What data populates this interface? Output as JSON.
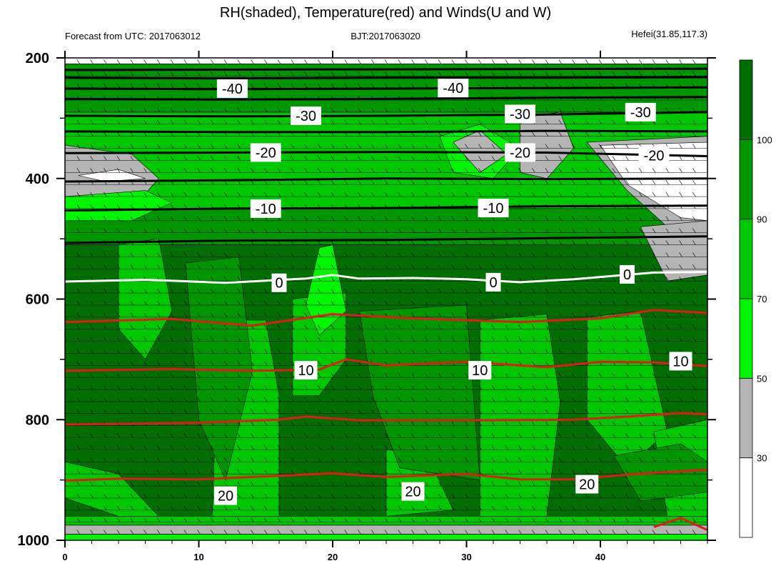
{
  "colors": {
    "rh_fills": [
      "#ffffff",
      "#b4b4b4",
      "#00f600",
      "#00c800",
      "#009600",
      "#006e00"
    ],
    "temp_line": "#e41a1a",
    "zero_line": "#ffffff",
    "cold_line": "#000000"
  },
  "chart_data": {
    "type": "contour",
    "title": "RH(shaded), Temperature(red) and Winds(U and W)",
    "subtitle_left": "Forecast from UTC: 2017063012",
    "subtitle_center": "BJT:2017063020",
    "subtitle_right": "Hefei(31.85,117.3)",
    "xlim": [
      0,
      48
    ],
    "ylim": [
      1000,
      200
    ],
    "x_ticks": [
      "0",
      "10",
      "20",
      "30",
      "40"
    ],
    "y_ticks": [
      "200",
      "400",
      "600",
      "800",
      "1000"
    ],
    "colorbar": {
      "levels": [
        "30",
        "50",
        "70",
        "90",
        "100"
      ],
      "bins": [
        {
          "from": 0,
          "to": 30
        },
        {
          "from": 30,
          "to": 50
        },
        {
          "from": 50,
          "to": 70
        },
        {
          "from": 70,
          "to": 90
        },
        {
          "from": 90,
          "to": 100
        },
        {
          "from": 100,
          "to": 110
        }
      ]
    },
    "rh_regions": [
      {
        "bin": 4,
        "poly": [
          [
            0,
            210
          ],
          [
            48,
            210
          ],
          [
            48,
            290
          ],
          [
            0,
            290
          ]
        ]
      },
      {
        "bin": 3,
        "poly": [
          [
            0,
            290
          ],
          [
            48,
            290
          ],
          [
            48,
            450
          ],
          [
            0,
            450
          ]
        ]
      },
      {
        "bin": 4,
        "poly": [
          [
            0,
            450
          ],
          [
            48,
            450
          ],
          [
            48,
            510
          ],
          [
            0,
            510
          ]
        ]
      },
      {
        "bin": 5,
        "poly": [
          [
            0,
            510
          ],
          [
            48,
            510
          ],
          [
            48,
            960
          ],
          [
            0,
            960
          ]
        ]
      },
      {
        "bin": 3,
        "poly": [
          [
            0,
            960
          ],
          [
            48,
            960
          ],
          [
            48,
            975
          ],
          [
            0,
            975
          ]
        ]
      },
      {
        "bin": 1,
        "poly": [
          [
            0,
            975
          ],
          [
            48,
            975
          ],
          [
            48,
            990
          ],
          [
            0,
            990
          ]
        ]
      },
      {
        "bin": 2,
        "poly": [
          [
            0,
            990
          ],
          [
            48,
            990
          ],
          [
            48,
            1000
          ],
          [
            0,
            1000
          ]
        ]
      },
      {
        "bin": 1,
        "poly": [
          [
            0,
            345
          ],
          [
            5,
            360
          ],
          [
            7,
            400
          ],
          [
            6,
            425
          ],
          [
            0,
            430
          ]
        ]
      },
      {
        "bin": 0,
        "poly": [
          [
            1,
            395
          ],
          [
            4,
            385
          ],
          [
            6,
            400
          ],
          [
            3,
            405
          ]
        ]
      },
      {
        "bin": 2,
        "poly": [
          [
            0,
            430
          ],
          [
            6,
            420
          ],
          [
            8,
            440
          ],
          [
            5,
            470
          ],
          [
            0,
            470
          ]
        ]
      },
      {
        "bin": 2,
        "poly": [
          [
            28,
            330
          ],
          [
            31,
            310
          ],
          [
            34,
            350
          ],
          [
            32,
            400
          ],
          [
            29,
            390
          ]
        ]
      },
      {
        "bin": 1,
        "poly": [
          [
            29,
            340
          ],
          [
            31,
            320
          ],
          [
            33,
            360
          ],
          [
            31,
            390
          ]
        ]
      },
      {
        "bin": 1,
        "poly": [
          [
            34,
            300
          ],
          [
            37,
            290
          ],
          [
            38,
            350
          ],
          [
            36,
            400
          ],
          [
            34,
            390
          ]
        ]
      },
      {
        "bin": 1,
        "poly": [
          [
            39,
            340
          ],
          [
            48,
            330
          ],
          [
            48,
            490
          ],
          [
            45,
            480
          ],
          [
            42,
            420
          ]
        ]
      },
      {
        "bin": 0,
        "poly": [
          [
            40,
            345
          ],
          [
            48,
            340
          ],
          [
            48,
            470
          ],
          [
            46,
            465
          ],
          [
            42,
            410
          ]
        ]
      },
      {
        "bin": 1,
        "poly": [
          [
            43,
            480
          ],
          [
            48,
            470
          ],
          [
            48,
            560
          ],
          [
            45,
            570
          ]
        ]
      },
      {
        "bin": 3,
        "poly": [
          [
            4,
            510
          ],
          [
            7,
            500
          ],
          [
            8,
            620
          ],
          [
            6,
            700
          ],
          [
            4,
            650
          ]
        ]
      },
      {
        "bin": 3,
        "poly": [
          [
            11.5,
            635
          ],
          [
            15,
            635
          ],
          [
            16,
            760
          ],
          [
            16,
            960
          ],
          [
            11,
            960
          ]
        ]
      },
      {
        "bin": 3,
        "poly": [
          [
            17,
            600
          ],
          [
            21,
            590
          ],
          [
            21,
            700
          ],
          [
            19,
            760
          ],
          [
            17,
            760
          ]
        ]
      },
      {
        "bin": 2,
        "poly": [
          [
            19,
            515
          ],
          [
            20,
            510
          ],
          [
            21,
            620
          ],
          [
            19,
            660
          ],
          [
            18,
            610
          ]
        ]
      },
      {
        "bin": 3,
        "poly": [
          [
            0,
            870
          ],
          [
            4,
            890
          ],
          [
            7,
            960
          ],
          [
            4,
            960
          ],
          [
            0,
            930
          ]
        ]
      },
      {
        "bin": 3,
        "poly": [
          [
            24,
            850
          ],
          [
            27,
            855
          ],
          [
            29,
            950
          ],
          [
            24,
            960
          ]
        ]
      },
      {
        "bin": 3,
        "poly": [
          [
            31,
            635
          ],
          [
            36,
            625
          ],
          [
            37,
            770
          ],
          [
            36,
            960
          ],
          [
            31,
            960
          ]
        ]
      },
      {
        "bin": 3,
        "poly": [
          [
            39,
            630
          ],
          [
            43,
            620
          ],
          [
            45,
            820
          ],
          [
            42,
            880
          ],
          [
            39,
            800
          ]
        ]
      },
      {
        "bin": 3,
        "poly": [
          [
            44,
            820
          ],
          [
            48,
            800
          ],
          [
            48,
            960
          ],
          [
            45,
            960
          ]
        ]
      },
      {
        "bin": 4,
        "poly": [
          [
            9,
            540
          ],
          [
            13,
            530
          ],
          [
            14,
            720
          ],
          [
            12,
            900
          ],
          [
            10,
            800
          ]
        ]
      },
      {
        "bin": 4,
        "poly": [
          [
            22,
            620
          ],
          [
            30,
            610
          ],
          [
            31,
            900
          ],
          [
            25,
            880
          ],
          [
            23,
            760
          ]
        ]
      },
      {
        "bin": 4,
        "poly": [
          [
            41,
            860
          ],
          [
            46,
            840
          ],
          [
            48,
            870
          ],
          [
            48,
            920
          ],
          [
            43,
            935
          ]
        ]
      }
    ],
    "wind_barb_levels": [
      210,
      230,
      250,
      270,
      290,
      310,
      330,
      350,
      370,
      390,
      410,
      430,
      450,
      470,
      490,
      510,
      530,
      550,
      570,
      590,
      610,
      630,
      650,
      670,
      690,
      710,
      730,
      750,
      770,
      790,
      810,
      830,
      850,
      870,
      890,
      910,
      930,
      950,
      970,
      990
    ],
    "temperature_contours": [
      {
        "level": -50,
        "points": [
          [
            0,
            220
          ],
          [
            48,
            218
          ]
        ]
      },
      {
        "level": -45,
        "points": [
          [
            0,
            233
          ],
          [
            12,
            234
          ],
          [
            24,
            233
          ],
          [
            36,
            233
          ],
          [
            48,
            232
          ]
        ]
      },
      {
        "level": -40,
        "points": [
          [
            0,
            251
          ],
          [
            12,
            252
          ],
          [
            24,
            251
          ],
          [
            36,
            250
          ],
          [
            48,
            249
          ]
        ],
        "label": "-40",
        "label_at": [
          [
            12.5,
            251
          ],
          [
            29,
            250
          ]
        ]
      },
      {
        "level": -35,
        "points": [
          [
            0,
            268
          ],
          [
            12,
            269
          ],
          [
            24,
            268
          ],
          [
            36,
            266
          ],
          [
            48,
            265
          ]
        ]
      },
      {
        "level": -30,
        "points": [
          [
            0,
            296
          ],
          [
            12,
            297
          ],
          [
            24,
            296
          ],
          [
            36,
            294
          ],
          [
            48,
            290
          ]
        ],
        "label": "-30",
        "label_at": [
          [
            18,
            296
          ],
          [
            34,
            293
          ],
          [
            43,
            290
          ]
        ]
      },
      {
        "level": -25,
        "points": [
          [
            0,
            322
          ],
          [
            12,
            323
          ],
          [
            24,
            323
          ],
          [
            36,
            321
          ],
          [
            48,
            322
          ]
        ]
      },
      {
        "level": -20,
        "points": [
          [
            0,
            358
          ],
          [
            12,
            357
          ],
          [
            24,
            356
          ],
          [
            36,
            357
          ],
          [
            48,
            363
          ]
        ],
        "label": "-20",
        "label_at": [
          [
            15,
            357
          ],
          [
            34,
            357
          ],
          [
            44,
            362
          ]
        ]
      },
      {
        "level": -15,
        "points": [
          [
            0,
            405
          ],
          [
            12,
            403
          ],
          [
            24,
            400
          ],
          [
            36,
            401
          ],
          [
            48,
            400
          ]
        ]
      },
      {
        "level": -10,
        "points": [
          [
            0,
            453
          ],
          [
            12,
            450
          ],
          [
            24,
            449
          ],
          [
            36,
            446
          ],
          [
            48,
            445
          ]
        ],
        "label": "-10",
        "label_at": [
          [
            15,
            450
          ],
          [
            32,
            449
          ]
        ]
      },
      {
        "level": -5,
        "points": [
          [
            0,
            507
          ],
          [
            12,
            503
          ],
          [
            24,
            502
          ],
          [
            36,
            499
          ],
          [
            48,
            496
          ]
        ]
      },
      {
        "level": 0,
        "points": [
          [
            0,
            571
          ],
          [
            6,
            568
          ],
          [
            12,
            573
          ],
          [
            18,
            566
          ],
          [
            20,
            560
          ],
          [
            22,
            566
          ],
          [
            26,
            565
          ],
          [
            30,
            567
          ],
          [
            34,
            572
          ],
          [
            38,
            567
          ],
          [
            44,
            556
          ],
          [
            48,
            555
          ]
        ],
        "label": "0",
        "label_at": [
          [
            16,
            573
          ],
          [
            32,
            572
          ],
          [
            42,
            559
          ]
        ]
      },
      {
        "level": 5,
        "points": [
          [
            0,
            638
          ],
          [
            8,
            633
          ],
          [
            14,
            644
          ],
          [
            20,
            625
          ],
          [
            26,
            632
          ],
          [
            34,
            638
          ],
          [
            40,
            632
          ],
          [
            44,
            618
          ],
          [
            48,
            623
          ]
        ]
      },
      {
        "level": 10,
        "points": [
          [
            0,
            719
          ],
          [
            8,
            716
          ],
          [
            14,
            719
          ],
          [
            19,
            717
          ],
          [
            21,
            700
          ],
          [
            24,
            710
          ],
          [
            30,
            704
          ],
          [
            36,
            713
          ],
          [
            40,
            704
          ],
          [
            44,
            705
          ],
          [
            48,
            711
          ]
        ],
        "label": "10",
        "label_at": [
          [
            18,
            718
          ],
          [
            31,
            718
          ],
          [
            46,
            703
          ]
        ]
      },
      {
        "level": 15,
        "points": [
          [
            0,
            808
          ],
          [
            10,
            805
          ],
          [
            16,
            800
          ],
          [
            18,
            795
          ],
          [
            22,
            801
          ],
          [
            30,
            801
          ],
          [
            38,
            800
          ],
          [
            42,
            795
          ],
          [
            46,
            789
          ],
          [
            48,
            791
          ]
        ]
      },
      {
        "level": 20,
        "points": [
          [
            0,
            901
          ],
          [
            4,
            898
          ],
          [
            10,
            899
          ],
          [
            16,
            893
          ],
          [
            20,
            889
          ],
          [
            24,
            895
          ],
          [
            30,
            890
          ],
          [
            34,
            899
          ],
          [
            38,
            899
          ],
          [
            42,
            891
          ],
          [
            48,
            883
          ]
        ],
        "label": "20",
        "label_at": [
          [
            12,
            926
          ],
          [
            26,
            919
          ],
          [
            39,
            907
          ]
        ]
      },
      {
        "level": 25,
        "points": [
          [
            44,
            978
          ],
          [
            46,
            963
          ],
          [
            48,
            983
          ]
        ]
      }
    ]
  }
}
